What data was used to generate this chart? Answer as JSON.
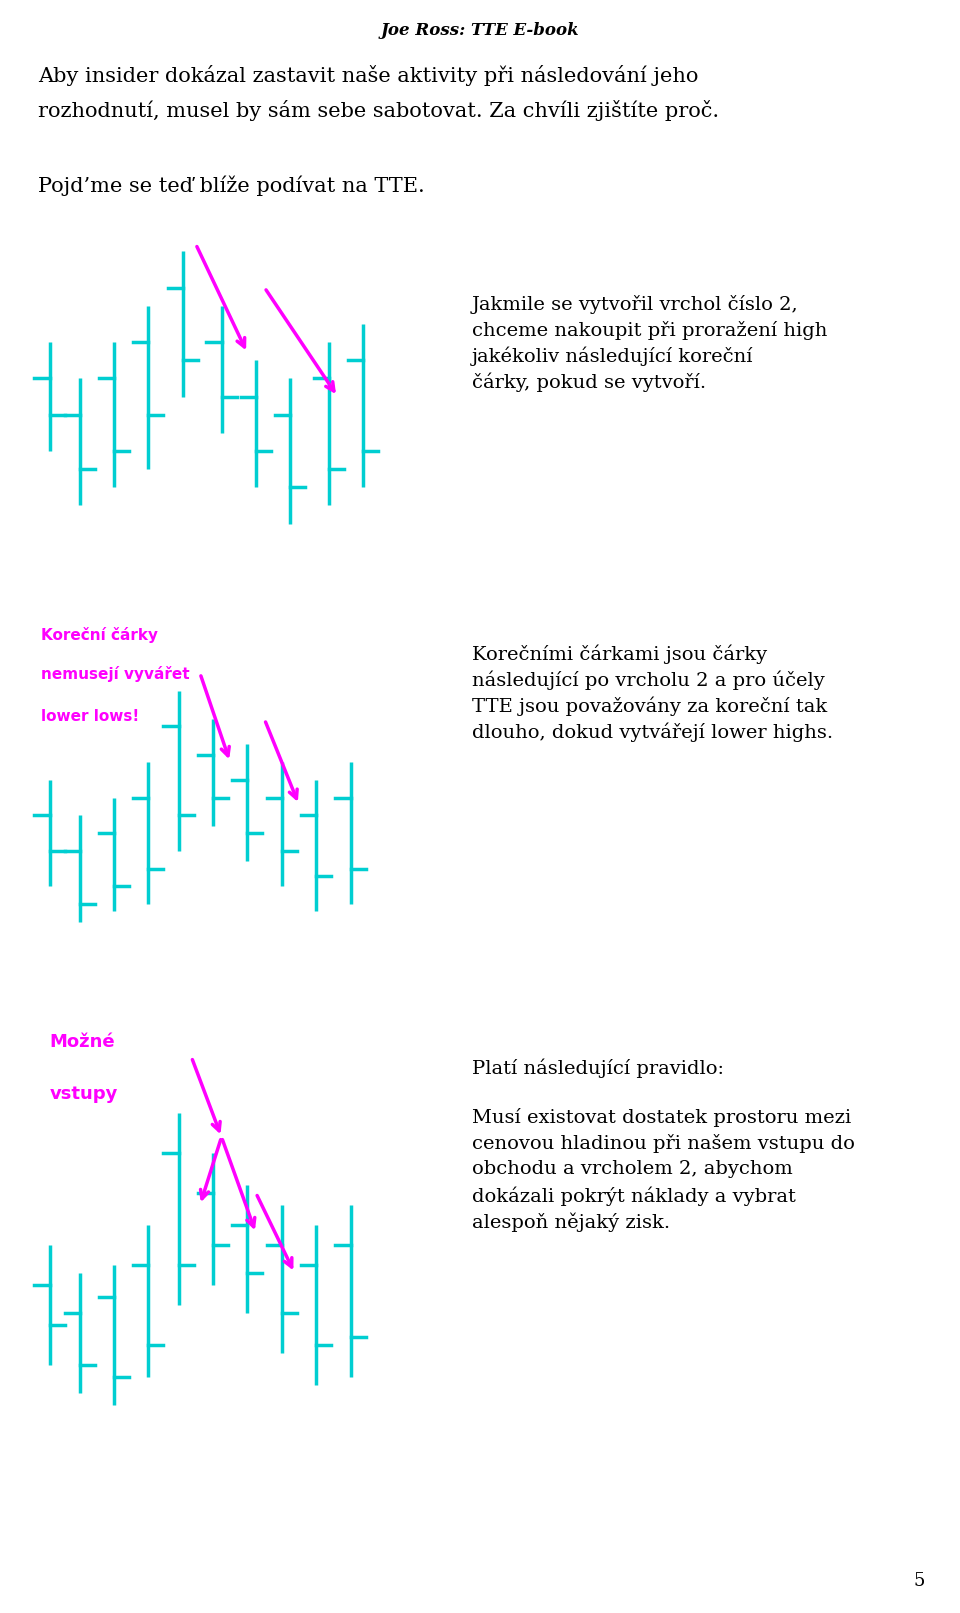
{
  "title": "Joe Ross: TTE E-book",
  "bg_color": "#ffffff",
  "chart_bg": "#00008B",
  "teal": "#00CED1",
  "magenta": "#FF00FF",
  "white": "#ffffff",
  "para1_line1": "Aby insider dokázal zastavit naše aktivity při následování jeho",
  "para1_line2": "rozhodnutí, musel by sám sebe sabotovat. Za chvíli zjištíte proč.",
  "para2": "Pojd’me se teď blíže podívat na TTE.",
  "chart1_right_line1": "Jakmile se vytvořil vrchol číslo 2,",
  "chart1_right_line2": "chceme nakoupit při proražení high",
  "chart1_right_line3": "jakékoliv následující koreční",
  "chart1_right_line4": "čárky, pokud se vytvoří.",
  "chart2_label_line1": "Koreční čárky",
  "chart2_label_line2": "nemusejí vyvářet",
  "chart2_label_line3": "lower lows!",
  "chart2_right_line1": "Korečními čárkami jsou čárky",
  "chart2_right_line2": "následující po vrcholu 2 a pro účely",
  "chart2_right_line3": "TTE jsou považovány za koreční tak",
  "chart2_right_line4": "dlouho, dokud vytvářejí lower highs.",
  "chart3_label_line1": "Možné",
  "chart3_label_line2": "vstupy",
  "chart3_right_line1": "Platí následující pravidlo:",
  "chart3_right_line2": "Musí existovat dostatek prostoru mezi",
  "chart3_right_line3": "cenovou hladinou při našem vstupu do",
  "chart3_right_line4": "obchodu a vrcholem 2, abychom",
  "chart3_right_line5": "dokázali pokrýt náklady a vybrat",
  "chart3_right_line6": "alespoň nějaký zisk.",
  "page_number": "5"
}
